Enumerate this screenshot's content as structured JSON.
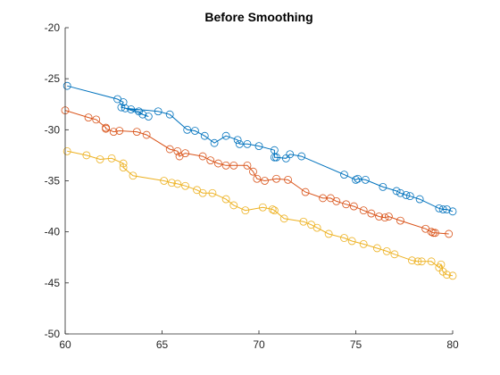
{
  "chart_data": {
    "type": "line",
    "title": "Before Smoothing",
    "xlabel": "",
    "ylabel": "",
    "xlim": [
      60,
      80
    ],
    "ylim": [
      -50,
      -20
    ],
    "xticks": [
      60,
      65,
      70,
      75,
      80
    ],
    "yticks": [
      -50,
      -45,
      -40,
      -35,
      -30,
      -25,
      -20
    ],
    "grid": false,
    "legend": "none",
    "marker": "circle-open",
    "series": [
      {
        "color": "#0072BD",
        "x": [
          60.1,
          62.7,
          63.0,
          62.9,
          63.4,
          63.8,
          64.0,
          64.3,
          63.1,
          64.8,
          65.4,
          66.3,
          66.7,
          67.2,
          67.7,
          68.3,
          68.9,
          69.0,
          69.4,
          70.0,
          70.8,
          70.8,
          70.9,
          71.4,
          71.6,
          72.2,
          74.4,
          75.0,
          75.1,
          75.5,
          76.4,
          77.1,
          77.3,
          77.6,
          77.8,
          78.3,
          79.3,
          79.5,
          79.7,
          80.0
        ],
        "y": [
          -25.7,
          -27.0,
          -27.3,
          -27.8,
          -28.0,
          -28.2,
          -28.5,
          -28.7,
          -27.9,
          -28.2,
          -28.5,
          -30.0,
          -30.1,
          -30.6,
          -31.3,
          -30.6,
          -31.0,
          -31.4,
          -31.4,
          -31.6,
          -32.0,
          -32.7,
          -32.7,
          -32.8,
          -32.4,
          -32.6,
          -34.4,
          -34.9,
          -34.8,
          -34.9,
          -35.6,
          -36.0,
          -36.2,
          -36.4,
          -36.5,
          -36.8,
          -37.7,
          -37.8,
          -37.8,
          -38.0
        ]
      },
      {
        "color": "#D95319",
        "x": [
          60.0,
          61.2,
          61.6,
          62.1,
          62.1,
          62.5,
          62.8,
          63.7,
          64.2,
          65.4,
          65.8,
          65.9,
          66.2,
          67.1,
          67.5,
          67.9,
          68.3,
          68.7,
          69.4,
          69.7,
          69.9,
          70.3,
          70.9,
          71.5,
          72.4,
          73.3,
          73.7,
          74.0,
          74.5,
          74.9,
          75.4,
          75.8,
          76.2,
          76.5,
          76.7,
          77.3,
          78.6,
          78.9,
          79.0,
          79.1,
          79.8
        ],
        "y": [
          -28.1,
          -28.8,
          -29.0,
          -29.8,
          -29.9,
          -30.2,
          -30.1,
          -30.2,
          -30.5,
          -31.9,
          -32.1,
          -32.6,
          -32.3,
          -32.6,
          -33.0,
          -33.3,
          -33.5,
          -33.5,
          -33.5,
          -34.1,
          -34.8,
          -35.0,
          -34.8,
          -34.9,
          -36.1,
          -36.7,
          -36.7,
          -37.0,
          -37.3,
          -37.5,
          -37.9,
          -38.2,
          -38.5,
          -38.6,
          -38.5,
          -38.9,
          -39.7,
          -40.0,
          -40.1,
          -40.1,
          -40.2
        ]
      },
      {
        "color": "#EDB120",
        "x": [
          60.1,
          61.1,
          61.8,
          62.4,
          63.0,
          63.0,
          63.5,
          65.1,
          65.5,
          65.8,
          66.2,
          66.8,
          67.1,
          67.6,
          68.3,
          68.7,
          69.3,
          70.2,
          70.7,
          70.8,
          71.3,
          72.3,
          72.7,
          73.0,
          73.6,
          74.4,
          74.8,
          75.4,
          76.1,
          76.6,
          77.0,
          77.9,
          78.2,
          78.4,
          78.9,
          79.3,
          79.4,
          79.5,
          79.7,
          80.0
        ],
        "y": [
          -32.1,
          -32.5,
          -32.9,
          -32.8,
          -33.3,
          -33.7,
          -34.5,
          -35.0,
          -35.2,
          -35.3,
          -35.5,
          -35.9,
          -36.2,
          -36.2,
          -36.8,
          -37.4,
          -37.9,
          -37.6,
          -37.8,
          -37.9,
          -38.7,
          -39.0,
          -39.3,
          -39.6,
          -40.2,
          -40.6,
          -40.9,
          -41.2,
          -41.6,
          -41.9,
          -42.2,
          -42.8,
          -42.9,
          -42.9,
          -42.9,
          -43.5,
          -43.2,
          -43.9,
          -44.2,
          -44.3
        ]
      }
    ]
  }
}
